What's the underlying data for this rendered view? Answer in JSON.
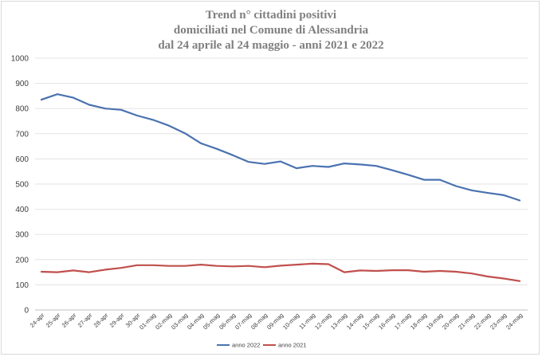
{
  "chart_data": {
    "type": "line",
    "title": [
      "Trend n° cittadini positivi",
      "domiciliati nel Comune di Alessandria",
      "dal 24 aprile al 24 maggio - anni 2021 e 2022"
    ],
    "xlabel": "",
    "ylabel": "",
    "ylim": [
      0,
      1000
    ],
    "yticks": [
      0,
      100,
      200,
      300,
      400,
      500,
      600,
      700,
      800,
      900,
      1000
    ],
    "grid": true,
    "legend_position": "bottom",
    "categories": [
      "24-apr",
      "25-apr",
      "26-apr",
      "27-apr",
      "28-apr",
      "29-apr",
      "30-apr",
      "01-mag",
      "02-mag",
      "03-mag",
      "04-mag",
      "05-mag",
      "06-mag",
      "07-mag",
      "08-mag",
      "09-mag",
      "10-mag",
      "11-mag",
      "12-mag",
      "13-mag",
      "14-mag",
      "15-mag",
      "16-mag",
      "17-mag",
      "18-mag",
      "19-mag",
      "20-mag",
      "21-mag",
      "22-mag",
      "23-mag",
      "24-mag"
    ],
    "series": [
      {
        "name": "anno 2022",
        "color": "#4a72b0",
        "values": [
          835,
          857,
          843,
          815,
          800,
          795,
          772,
          755,
          732,
          702,
          662,
          640,
          615,
          588,
          580,
          590,
          563,
          572,
          568,
          582,
          578,
          572,
          555,
          537,
          517,
          517,
          492,
          475,
          465,
          456,
          435
        ]
      },
      {
        "name": "anno 2021",
        "color": "#c0504d",
        "values": [
          152,
          150,
          157,
          150,
          160,
          167,
          178,
          178,
          175,
          175,
          180,
          175,
          173,
          175,
          170,
          176,
          180,
          184,
          182,
          150,
          157,
          155,
          158,
          158,
          152,
          155,
          152,
          145,
          133,
          125,
          115
        ]
      }
    ]
  }
}
